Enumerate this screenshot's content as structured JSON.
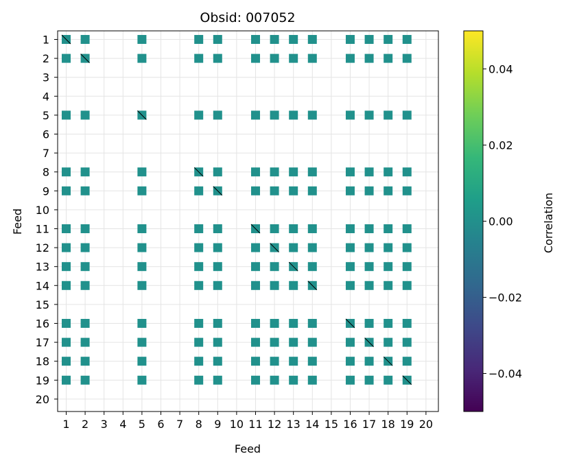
{
  "chart_data": {
    "type": "heatmap",
    "title": "Obsid: 007052",
    "xlabel": "Feed",
    "ylabel": "Feed",
    "feeds": [
      "1",
      "2",
      "3",
      "4",
      "5",
      "6",
      "7",
      "8",
      "9",
      "10",
      "11",
      "12",
      "13",
      "14",
      "15",
      "16",
      "17",
      "18",
      "19",
      "20"
    ],
    "active_feeds": [
      1,
      2,
      5,
      8,
      9,
      11,
      12,
      13,
      14,
      16,
      17,
      18,
      19
    ],
    "colorbar": {
      "label": "Correlation",
      "range": [
        -0.05,
        0.05
      ],
      "ticks": [
        "0.04",
        "0.02",
        "0.00",
        "−0.02",
        "−0.04"
      ],
      "tick_values": [
        0.04,
        0.02,
        0.0,
        -0.02,
        -0.04
      ],
      "colormap": "viridis",
      "stops": [
        "#440154",
        "#482878",
        "#3e4989",
        "#31688e",
        "#26828e",
        "#1f9e89",
        "#35b779",
        "#6ece58",
        "#b5de2b",
        "#fde725"
      ]
    },
    "cell_color": "#21918c",
    "grid": true
  }
}
